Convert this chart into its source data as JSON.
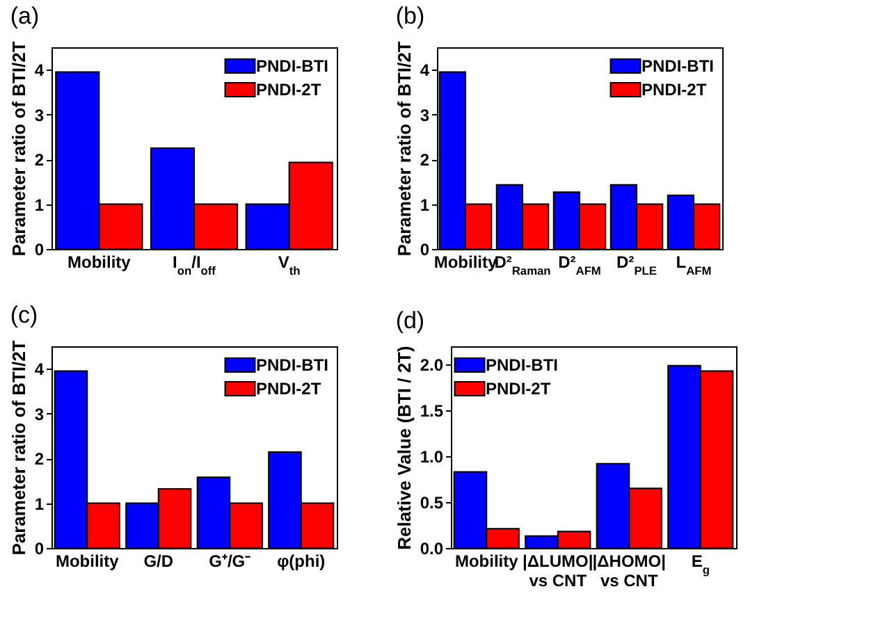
{
  "chart_data": [
    {
      "type": "bar",
      "title": "(a)",
      "ylabel": "Parameter ratio of BTI/2T",
      "categories": [
        "Mobility",
        "I$_{on}$/I$_{off}$",
        "V$_{th}$"
      ],
      "series": [
        {
          "name": "PNDI-BTI",
          "color": "#0000ff",
          "values": [
            3.95,
            2.25,
            1.0
          ]
        },
        {
          "name": "PNDI-2T",
          "color": "#ff0000",
          "values": [
            1.0,
            1.0,
            1.93
          ]
        }
      ],
      "ylim": [
        0,
        4.5
      ],
      "yticks": [
        0,
        1,
        2,
        3,
        4
      ],
      "legend": "top right"
    },
    {
      "type": "bar",
      "title": "(b)",
      "ylabel": "Parameter ratio of BTI/2T",
      "categories": [
        "Mobility",
        "D²$_{Raman}$",
        "D²$_{AFM}$",
        "D²$_{PLE}$",
        "L$_{AFM}$"
      ],
      "series": [
        {
          "name": "PNDI-BTI",
          "color": "#0000ff",
          "values": [
            3.95,
            1.43,
            1.27,
            1.43,
            1.2
          ]
        },
        {
          "name": "PNDI-2T",
          "color": "#ff0000",
          "values": [
            1.0,
            1.0,
            1.0,
            1.0,
            1.0
          ]
        }
      ],
      "ylim": [
        0,
        4.5
      ],
      "yticks": [
        0,
        1,
        2,
        3,
        4
      ],
      "legend": "top right"
    },
    {
      "type": "bar",
      "title": "(c)",
      "ylabel": "Parameter ratio of BTI/2T",
      "categories": [
        "Mobility",
        "G/D",
        "G⁺/G⁻",
        "φ(phi)"
      ],
      "series": [
        {
          "name": "PNDI-BTI",
          "color": "#0000ff",
          "values": [
            3.95,
            1.0,
            1.58,
            2.14
          ]
        },
        {
          "name": "PNDI-2T",
          "color": "#ff0000",
          "values": [
            1.0,
            1.32,
            1.0,
            1.0
          ]
        }
      ],
      "ylim": [
        0,
        4.5
      ],
      "yticks": [
        0,
        1,
        2,
        3,
        4
      ],
      "legend": "top right"
    },
    {
      "type": "bar",
      "title": "(d)",
      "ylabel": "Relative Value (BTI / 2T)",
      "categories": [
        "Mobility",
        "|ΔLUMO|\nvs CNT",
        "|ΔHOMO|\nvs CNT",
        "E$_{g}$"
      ],
      "series": [
        {
          "name": "PNDI-BTI",
          "color": "#0000ff",
          "values": [
            0.83,
            0.13,
            0.92,
            1.99
          ]
        },
        {
          "name": "PNDI-2T",
          "color": "#ff0000",
          "values": [
            0.21,
            0.18,
            0.65,
            1.93
          ]
        }
      ],
      "ylim": [
        0,
        2.2
      ],
      "yticks": [
        {
          "value": 0,
          "label": "0.0"
        },
        0.5,
        {
          "value": 1,
          "label": "1.0"
        },
        1.5,
        {
          "value": 2,
          "label": "2.0"
        }
      ],
      "legend": "top left"
    }
  ]
}
